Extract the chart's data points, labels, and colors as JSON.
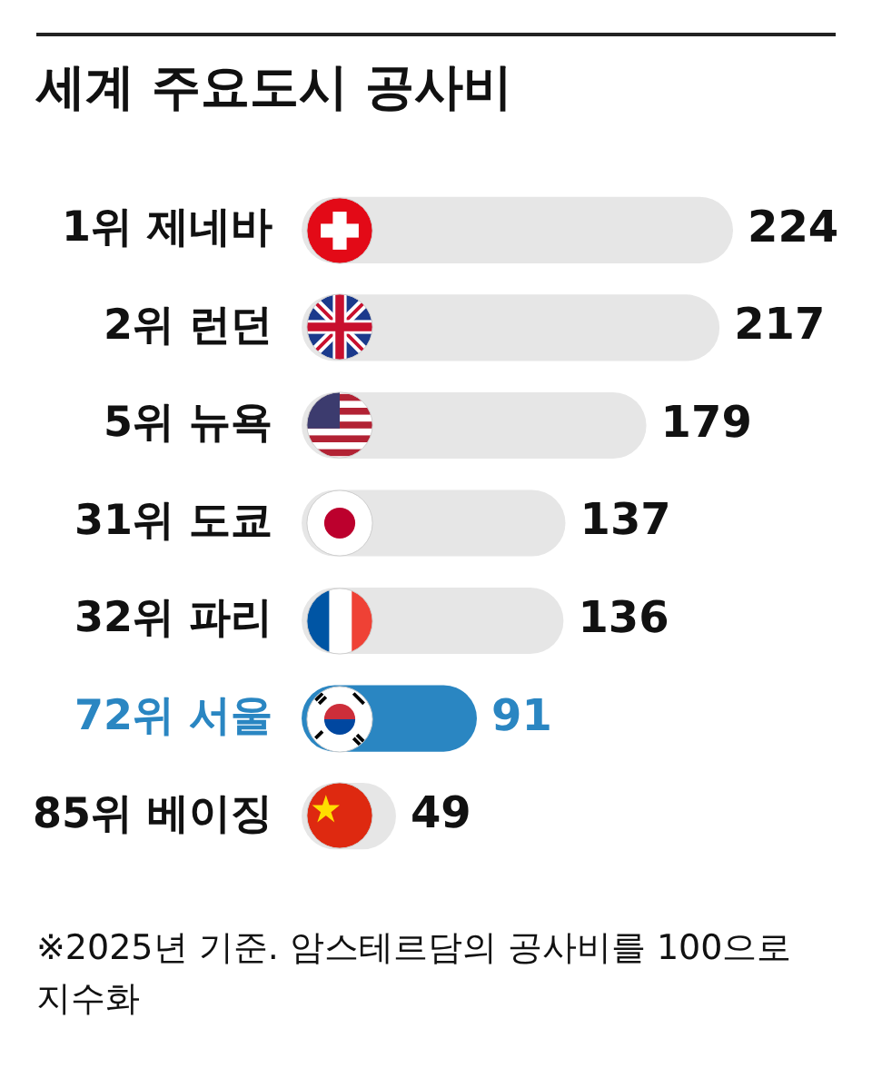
{
  "chart_data": {
    "type": "bar",
    "orientation": "horizontal",
    "title": "세계 주요도시 공사비",
    "categories": [
      "1위 제네바",
      "2위 런던",
      "5위 뉴욕",
      "31위 도쿄",
      "32위 파리",
      "72위 서울",
      "85위 베이징"
    ],
    "values": [
      224,
      217,
      179,
      137,
      136,
      91,
      49
    ],
    "colors": [
      "#e6e6e6",
      "#e6e6e6",
      "#e6e6e6",
      "#e6e6e6",
      "#e6e6e6",
      "#2a86c2",
      "#e6e6e6"
    ],
    "data_labels": true,
    "legend": false,
    "annotations": [
      "※2025년 기준. 암스테르담의 공사비를 100으로 지수화"
    ]
  }
}
